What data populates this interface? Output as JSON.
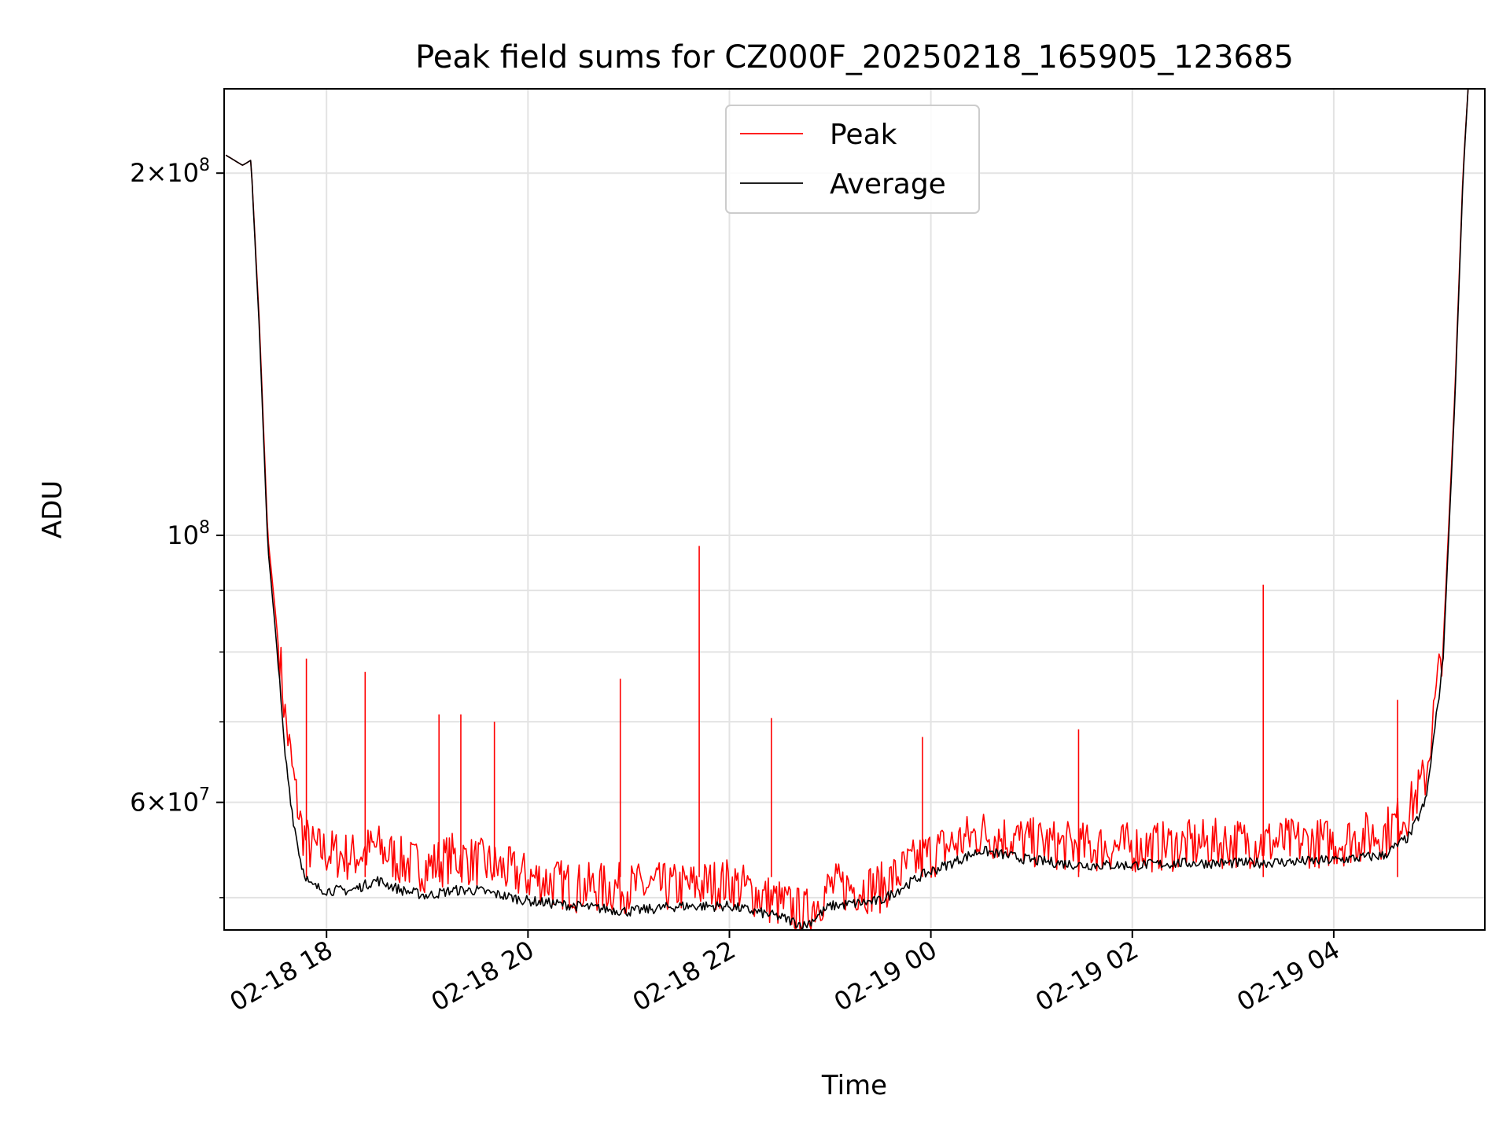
{
  "chart_data": {
    "type": "line",
    "title": "Peak field sums for CZ000F_20250218_165905_123685",
    "xlabel": "Time",
    "ylabel": "ADU",
    "yscale": "log",
    "xlim": [
      "2025-02-18 16:59",
      "2025-02-19 05:30"
    ],
    "ylim": [
      47000000,
      235000000
    ],
    "grid": true,
    "legend_position": "top-center",
    "x_tick_labels": [
      "02-18 18",
      "02-18 20",
      "02-18 22",
      "02-19 00",
      "02-19 02",
      "02-19 04"
    ],
    "y_tick_labels": [
      {
        "value": 200000000,
        "mantissa": "2",
        "exponent": "8"
      },
      {
        "value": 100000000,
        "mantissa": "",
        "exponent": "8"
      },
      {
        "value": 60000000,
        "mantissa": "6",
        "exponent": "7"
      }
    ],
    "series": [
      {
        "name": "Peak",
        "color": "#ff0000",
        "x": [
          "2025-02-18 17:00",
          "2025-02-18 17:10",
          "2025-02-18 17:15",
          "2025-02-18 17:20",
          "2025-02-18 17:25",
          "2025-02-18 17:30",
          "2025-02-18 17:35",
          "2025-02-18 17:40",
          "2025-02-18 17:45",
          "2025-02-18 17:50",
          "2025-02-18 18:00",
          "2025-02-18 18:15",
          "2025-02-18 18:30",
          "2025-02-18 18:45",
          "2025-02-18 19:00",
          "2025-02-18 19:15",
          "2025-02-18 19:30",
          "2025-02-18 20:00",
          "2025-02-18 20:30",
          "2025-02-18 21:00",
          "2025-02-18 21:30",
          "2025-02-18 22:00",
          "2025-02-18 22:30",
          "2025-02-18 22:45",
          "2025-02-18 23:00",
          "2025-02-18 23:30",
          "2025-02-18 23:55",
          "2025-02-19 00:30",
          "2025-02-19 01:00",
          "2025-02-19 01:30",
          "2025-02-19 02:00",
          "2025-02-19 02:30",
          "2025-02-19 03:00",
          "2025-02-19 03:30",
          "2025-02-19 04:00",
          "2025-02-19 04:30",
          "2025-02-19 04:45",
          "2025-02-19 04:55",
          "2025-02-19 05:05",
          "2025-02-19 05:12",
          "2025-02-19 05:17",
          "2025-02-19 05:20"
        ],
        "y": [
          207000000,
          203000000,
          205000000,
          150000000,
          100000000,
          85000000,
          70000000,
          62000000,
          56000000,
          54000000,
          53500000,
          53000000,
          54000000,
          52500000,
          52000000,
          53000000,
          52500000,
          51000000,
          50000000,
          50000000,
          50000000,
          50500000,
          48500000,
          47500000,
          50000000,
          50000000,
          53000000,
          55500000,
          54500000,
          54000000,
          54000000,
          54200000,
          54500000,
          54500000,
          54500000,
          55500000,
          58000000,
          62000000,
          80000000,
          130000000,
          200000000,
          235000000
        ]
      },
      {
        "name": "Average",
        "color": "#000000",
        "x": [
          "2025-02-18 17:00",
          "2025-02-18 17:10",
          "2025-02-18 17:15",
          "2025-02-18 17:20",
          "2025-02-18 17:25",
          "2025-02-18 17:30",
          "2025-02-18 17:35",
          "2025-02-18 17:40",
          "2025-02-18 17:45",
          "2025-02-18 17:50",
          "2025-02-18 18:00",
          "2025-02-18 18:15",
          "2025-02-18 18:30",
          "2025-02-18 18:45",
          "2025-02-18 19:00",
          "2025-02-18 19:15",
          "2025-02-18 19:30",
          "2025-02-18 20:00",
          "2025-02-18 20:30",
          "2025-02-18 21:00",
          "2025-02-18 21:30",
          "2025-02-18 22:00",
          "2025-02-18 22:30",
          "2025-02-18 22:45",
          "2025-02-18 23:00",
          "2025-02-18 23:30",
          "2025-02-18 23:55",
          "2025-02-19 00:30",
          "2025-02-19 01:00",
          "2025-02-19 01:30",
          "2025-02-19 02:00",
          "2025-02-19 02:30",
          "2025-02-19 03:00",
          "2025-02-19 03:30",
          "2025-02-19 04:00",
          "2025-02-19 04:30",
          "2025-02-19 04:45",
          "2025-02-19 04:55",
          "2025-02-19 05:05",
          "2025-02-19 05:12",
          "2025-02-19 05:17",
          "2025-02-19 05:20"
        ],
        "y": [
          207000000,
          203000000,
          205000000,
          148000000,
          98000000,
          82000000,
          66000000,
          58000000,
          53000000,
          51000000,
          50500000,
          50500000,
          51500000,
          50500000,
          50000000,
          50500000,
          50500000,
          49500000,
          49000000,
          48500000,
          49000000,
          49000000,
          48000000,
          47200000,
          49000000,
          49500000,
          52000000,
          54500000,
          53500000,
          53000000,
          53000000,
          53200000,
          53200000,
          53300000,
          53500000,
          54000000,
          56000000,
          60000000,
          78000000,
          128000000,
          198000000,
          235000000
        ]
      }
    ],
    "spikes": [
      {
        "series": "Peak",
        "x": "2025-02-18 17:48",
        "y": 79000000
      },
      {
        "series": "Peak",
        "x": "2025-02-18 18:23",
        "y": 77000000
      },
      {
        "series": "Peak",
        "x": "2025-02-18 19:07",
        "y": 71000000
      },
      {
        "series": "Peak",
        "x": "2025-02-18 19:20",
        "y": 71000000
      },
      {
        "series": "Peak",
        "x": "2025-02-18 19:40",
        "y": 70000000
      },
      {
        "series": "Peak",
        "x": "2025-02-18 20:55",
        "y": 76000000
      },
      {
        "series": "Peak",
        "x": "2025-02-18 21:42",
        "y": 98000000
      },
      {
        "series": "Peak",
        "x": "2025-02-18 22:25",
        "y": 70500000
      },
      {
        "series": "Peak",
        "x": "2025-02-18 23:55",
        "y": 68000000
      },
      {
        "series": "Peak",
        "x": "2025-02-19 01:28",
        "y": 69000000
      },
      {
        "series": "Peak",
        "x": "2025-02-19 03:18",
        "y": 91000000
      },
      {
        "series": "Peak",
        "x": "2025-02-19 04:38",
        "y": 73000000
      }
    ]
  }
}
